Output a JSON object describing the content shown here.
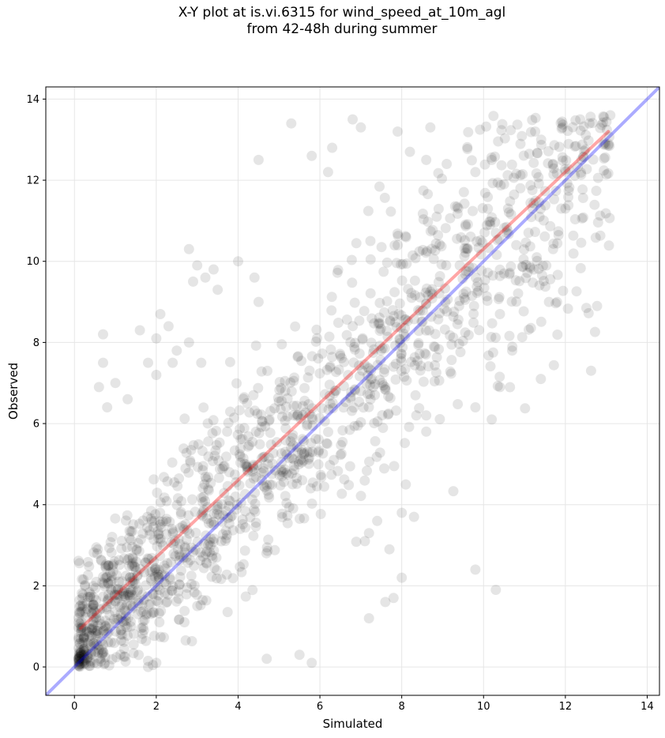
{
  "chart_data": {
    "type": "scatter",
    "title_line1": "X-Y plot at is.vi.6315 for wind_speed_at_10m_agl",
    "title_line2": "from 42-48h during summer",
    "xlabel": "Simulated",
    "ylabel": "Observed",
    "xlim": [
      -0.7,
      14.3
    ],
    "ylim": [
      -0.7,
      14.3
    ],
    "xticks": [
      0,
      2,
      4,
      6,
      8,
      10,
      12,
      14
    ],
    "yticks": [
      0,
      2,
      4,
      6,
      8,
      10,
      12,
      14
    ],
    "grid": true,
    "point_color": "#000000",
    "point_alpha": 0.1,
    "reference_line": {
      "label": "1:1",
      "color": "#0000ff",
      "x": [
        -0.7,
        14.3
      ],
      "y": [
        -0.7,
        14.3
      ]
    },
    "fit_line": {
      "color": "#ff0000",
      "x": [
        0.15,
        13.05
      ],
      "y": [
        0.95,
        13.2
      ]
    },
    "scatter_model": {
      "n_points": 1500,
      "x_range": [
        0.1,
        13.1
      ],
      "intercept": 0.6,
      "slope": 0.95,
      "noise_sd": 1.5,
      "x_density": "skewed-low"
    },
    "points": [
      [
        13.1,
        13.6
      ],
      [
        5.3,
        13.4
      ],
      [
        6.8,
        13.5
      ],
      [
        7.0,
        13.3
      ],
      [
        8.7,
        13.3
      ],
      [
        7.9,
        13.2
      ],
      [
        6.3,
        12.8
      ],
      [
        4.5,
        12.5
      ],
      [
        8.2,
        12.7
      ],
      [
        8.6,
        12.5
      ],
      [
        5.8,
        12.6
      ],
      [
        10.2,
        12.5
      ],
      [
        11.7,
        12.4
      ],
      [
        9.1,
        12.4
      ],
      [
        6.2,
        12.2
      ],
      [
        9.8,
        12.2
      ],
      [
        10.5,
        11.9
      ],
      [
        10.9,
        11.8
      ],
      [
        11.2,
        11.3
      ],
      [
        11.9,
        11.3
      ],
      [
        12.0,
        11.3
      ],
      [
        10.6,
        11.3
      ],
      [
        10.3,
        10.7
      ],
      [
        11.3,
        10.1
      ],
      [
        11.7,
        10.3
      ],
      [
        10.8,
        10.4
      ],
      [
        10.5,
        9.7
      ],
      [
        11.6,
        9.0
      ],
      [
        10.4,
        8.7
      ],
      [
        11.4,
        7.1
      ],
      [
        10.7,
        7.8
      ],
      [
        10.4,
        6.9
      ],
      [
        10.2,
        6.1
      ],
      [
        9.8,
        6.4
      ],
      [
        9.8,
        2.4
      ],
      [
        10.3,
        1.9
      ],
      [
        8.6,
        5.8
      ],
      [
        8.6,
        6.2
      ],
      [
        8.1,
        4.5
      ],
      [
        8.0,
        3.8
      ],
      [
        8.3,
        3.7
      ],
      [
        8.0,
        2.2
      ],
      [
        7.7,
        2.9
      ],
      [
        7.8,
        1.7
      ],
      [
        7.6,
        1.6
      ],
      [
        7.2,
        1.2
      ],
      [
        7.1,
        3.1
      ],
      [
        7.2,
        3.3
      ],
      [
        7.4,
        3.6
      ],
      [
        0.7,
        8.2
      ],
      [
        0.7,
        7.5
      ],
      [
        0.6,
        6.9
      ],
      [
        1.0,
        7.0
      ],
      [
        1.3,
        6.6
      ],
      [
        0.8,
        6.4
      ],
      [
        1.6,
        8.3
      ],
      [
        2.0,
        8.1
      ],
      [
        2.1,
        8.7
      ],
      [
        2.3,
        8.4
      ],
      [
        2.0,
        7.2
      ],
      [
        2.4,
        7.5
      ],
      [
        1.8,
        7.5
      ],
      [
        2.8,
        10.3
      ],
      [
        3.0,
        9.9
      ],
      [
        3.2,
        9.6
      ],
      [
        3.4,
        9.8
      ],
      [
        2.9,
        9.5
      ],
      [
        3.5,
        9.3
      ],
      [
        4.4,
        9.6
      ],
      [
        4.5,
        9.0
      ],
      [
        4.0,
        10.0
      ],
      [
        2.5,
        7.8
      ],
      [
        2.8,
        8.0
      ],
      [
        3.1,
        7.5
      ],
      [
        4.7,
        0.2
      ],
      [
        5.5,
        0.3
      ],
      [
        5.8,
        0.1
      ],
      [
        0.3,
        0.2
      ],
      [
        0.1,
        0.2
      ],
      [
        0.4,
        0.1
      ],
      [
        1.8,
        0.0
      ],
      [
        2.0,
        0.1
      ]
    ]
  }
}
